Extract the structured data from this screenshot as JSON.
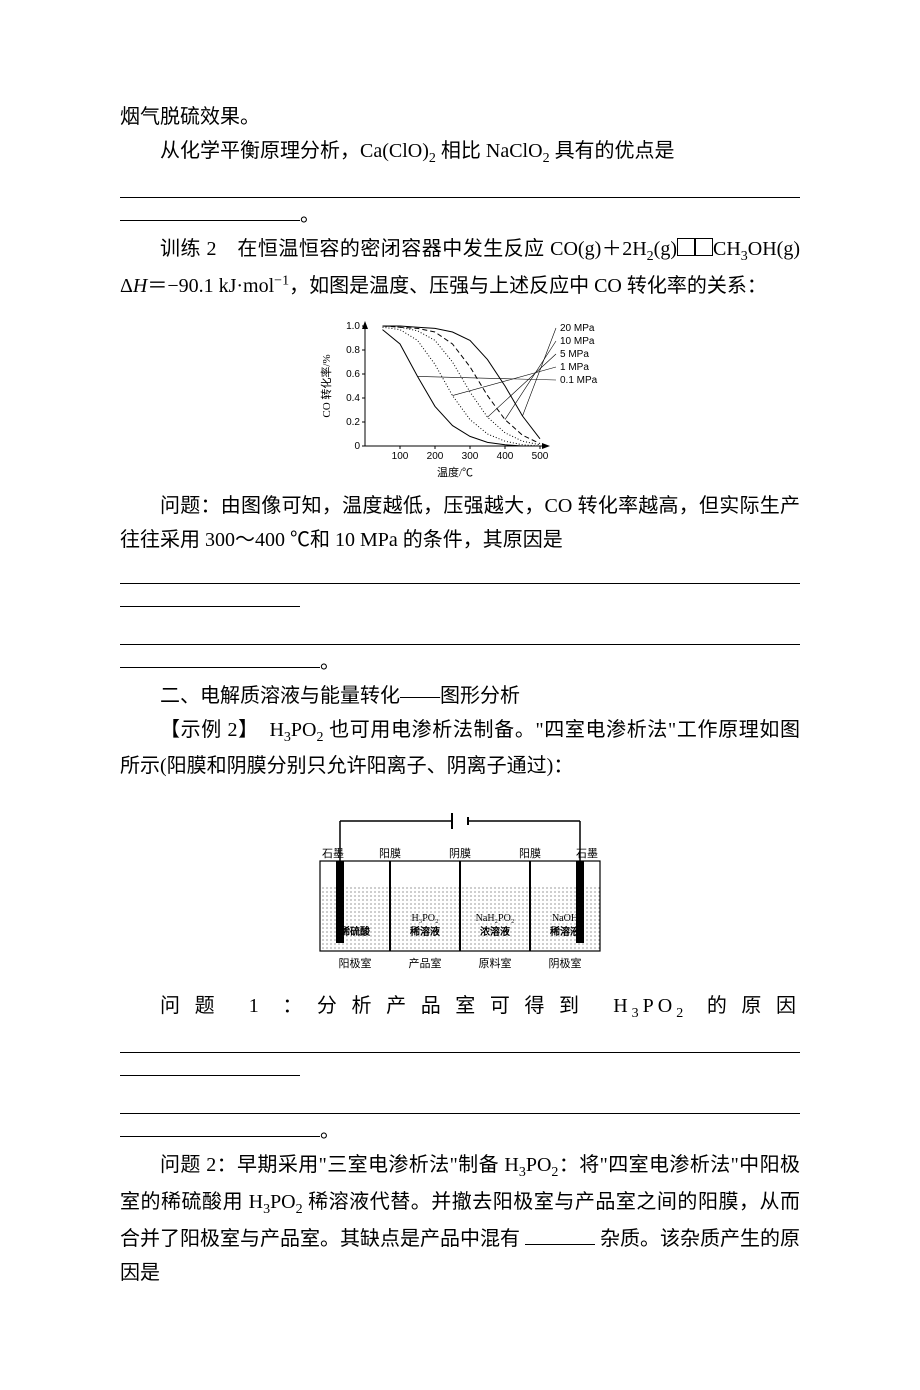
{
  "intro": {
    "line1": "烟气脱硫效果。",
    "line2_prefix": "从化学平衡原理分析，Ca(ClO)",
    "line2_sub1": "2",
    "line2_mid": " 相比 NaClO",
    "line2_sub2": "2",
    "line2_suffix": " 具有的优点是"
  },
  "train2": {
    "label": "训练 2",
    "text1_a": "在恒温恒容的密闭容器中发生反应 CO(g)＋2H",
    "text1_sub1": "2",
    "text1_b": "(g)",
    "text1_c": "CH",
    "text1_sub2": "3",
    "text1_d": "OH(g)　Δ",
    "text1_h": "H",
    "text1_e": "＝−90.1 kJ·mol",
    "text1_sup": "−1",
    "text1_f": "，如图是温度、压强与上述反应中 CO 转化率的关系：",
    "question_a": "问题：由图像可知，温度越低，压强越大，CO 转化率越高，但实际生产往往采用 300～400 ℃和 10 MPa 的条件，其原因是"
  },
  "chart": {
    "type": "line",
    "background_color": "#ffffff",
    "grid_color": "#000000",
    "xlabel": "温度/℃",
    "ylabel": "CO 转化率/%",
    "label_fontsize": 10,
    "xlim": [
      0,
      500
    ],
    "ylim": [
      0,
      1.0
    ],
    "xtick_labels": [
      "100",
      "200",
      "300",
      "400",
      "500"
    ],
    "ytick_labels": [
      "0",
      "0.2",
      "0.4",
      "0.6",
      "0.8",
      "1.0"
    ],
    "xtick_positions": [
      100,
      200,
      300,
      400,
      500
    ],
    "ytick_positions": [
      0,
      0.2,
      0.4,
      0.6,
      0.8,
      1.0
    ],
    "legend_labels": [
      "20 MPa",
      "10 MPa",
      "5 MPa",
      "1 MPa",
      "0.1 MPa"
    ],
    "line_styles": [
      "solid",
      "dash",
      "dot",
      "dot",
      "solid"
    ],
    "line_widths": [
      1,
      1,
      1,
      1,
      1
    ],
    "line_colors": [
      "#000000",
      "#000000",
      "#000000",
      "#000000",
      "#000000"
    ],
    "series": {
      "20MPa": {
        "x": [
          50,
          100,
          150,
          200,
          250,
          300,
          350,
          400,
          450,
          500
        ],
        "y": [
          1.0,
          1.0,
          0.99,
          0.98,
          0.95,
          0.88,
          0.72,
          0.5,
          0.25,
          0.06
        ]
      },
      "10MPa": {
        "x": [
          50,
          100,
          150,
          200,
          250,
          300,
          350,
          400,
          450,
          500
        ],
        "y": [
          1.0,
          0.99,
          0.98,
          0.95,
          0.85,
          0.66,
          0.42,
          0.22,
          0.09,
          0.02
        ]
      },
      "5MPa": {
        "x": [
          50,
          100,
          150,
          200,
          250,
          300,
          350,
          400,
          450,
          500
        ],
        "y": [
          1.0,
          0.99,
          0.96,
          0.88,
          0.7,
          0.45,
          0.24,
          0.11,
          0.04,
          0.01
        ]
      },
      "1MPa": {
        "x": [
          50,
          100,
          150,
          200,
          250,
          300,
          350,
          400,
          450,
          500
        ],
        "y": [
          0.99,
          0.97,
          0.88,
          0.68,
          0.42,
          0.22,
          0.1,
          0.04,
          0.01,
          0.0
        ]
      },
      "0.1MPa": {
        "x": [
          50,
          100,
          150,
          200,
          250,
          300,
          350,
          400,
          450,
          500
        ],
        "y": [
          0.97,
          0.85,
          0.58,
          0.33,
          0.17,
          0.08,
          0.03,
          0.01,
          0.0,
          0.0
        ]
      }
    },
    "legend_leader_lines": true
  },
  "section2": {
    "title": "二、电解质溶液与能量转化——图形分析",
    "ex2_label": "【示例 2】",
    "ex2_a": "H",
    "ex2_sub1": "3",
    "ex2_b": "PO",
    "ex2_sub2": "2",
    "ex2_c": " 也可用电渗析法制备。\"四室电渗析法\"工作原理如图所示(阳膜和阴膜分别只允许阳离子、阴离子通过)："
  },
  "diagram": {
    "type": "infographic",
    "background_color": "#ffffff",
    "electrode_left_label": "石墨",
    "electrode_right_label": "石墨",
    "membrane_labels": [
      "阳膜",
      "阴膜",
      "阳膜"
    ],
    "chamber_top_labels": [
      "",
      "",
      "",
      ""
    ],
    "chamber_inner_labels_line1": [
      "",
      "H₃PO₂",
      "NaH₂PO₂",
      "NaOH"
    ],
    "chamber_inner_labels_line2": [
      "稀硫酸",
      "稀溶液",
      "浓溶液",
      "稀溶液"
    ],
    "chamber_bottom_labels": [
      "阳极室",
      "产品室",
      "原料室",
      "阴极室"
    ],
    "colors": {
      "electrode": "#000000",
      "membrane": "#000000",
      "solution_fill": "#888888",
      "text": "#000000",
      "wire": "#000000"
    },
    "font_size": 10,
    "chamber_count": 4,
    "chamber_widths": [
      70,
      70,
      70,
      70
    ],
    "solution_pattern": "dots"
  },
  "q1": {
    "prefix": "问题 1 ：分析产品室可得到 H",
    "sub1": "3",
    "mid": "PO",
    "sub2": "2",
    "suffix": " 的原因"
  },
  "q2": {
    "a": "问题 2：早期采用\"三室电渗析法\"制备 H",
    "sub1": "3",
    "b": "PO",
    "sub2": "2",
    "c": "：将\"四室电渗析法\"中阳极室的稀硫酸用 H",
    "sub3": "3",
    "d": "PO",
    "sub4": "2",
    "e": " 稀溶液代替。并撤去阳极室与产品室之间的阳膜，从而合并了阳极室与产品室。其缺点是产品中混有 ",
    "f": " 杂质。该杂质产生的原因是"
  }
}
